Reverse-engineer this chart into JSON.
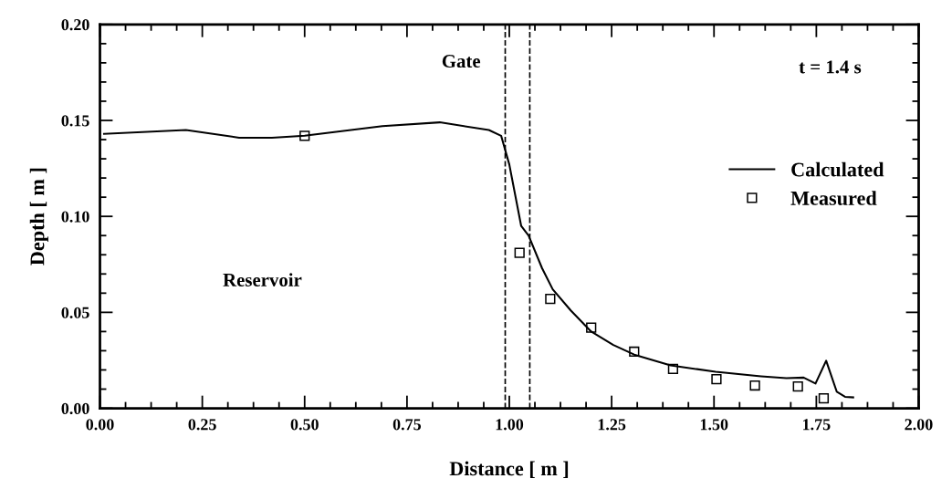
{
  "chart_data": {
    "type": "line",
    "xlabel": "Distance [ m ]",
    "ylabel": "Depth [ m ]",
    "xlim": [
      0,
      2
    ],
    "ylim": [
      0,
      0.2
    ],
    "xticks": [
      {
        "value": 0,
        "label": "0.00"
      },
      {
        "value": 0.25,
        "label": "0.25"
      },
      {
        "value": 0.5,
        "label": "0.50"
      },
      {
        "value": 0.75,
        "label": "0.75"
      },
      {
        "value": 1,
        "label": "1.00"
      },
      {
        "value": 1.25,
        "label": "1.25"
      },
      {
        "value": 1.5,
        "label": "1.50"
      },
      {
        "value": 1.75,
        "label": "1.75"
      },
      {
        "value": 2,
        "label": "2.00"
      }
    ],
    "yticks": [
      {
        "value": 0,
        "label": "0.00"
      },
      {
        "value": 0.05,
        "label": "0.05"
      },
      {
        "value": 0.1,
        "label": "0.10"
      },
      {
        "value": 0.15,
        "label": "0.15"
      },
      {
        "value": 0.2,
        "label": "0.20"
      }
    ],
    "grid": false,
    "legend": "right",
    "series": [
      {
        "name": "Calculated",
        "color": "#000000",
        "marker": "none",
        "line_style": "solid",
        "x": [
          0.01,
          0.21,
          0.34,
          0.42,
          0.5,
          0.69,
          0.83,
          0.95,
          0.98,
          1.0,
          1.029,
          1.047,
          1.08,
          1.106,
          1.15,
          1.2,
          1.254,
          1.305,
          1.394,
          1.504,
          1.615,
          1.677,
          1.719,
          1.748,
          1.774,
          1.8,
          1.82,
          1.84
        ],
        "values": [
          0.143,
          0.145,
          0.141,
          0.141,
          0.142,
          0.147,
          0.149,
          0.145,
          0.142,
          0.127,
          0.095,
          0.09,
          0.073,
          0.062,
          0.051,
          0.04,
          0.033,
          0.028,
          0.0224,
          0.019,
          0.0167,
          0.0157,
          0.016,
          0.0129,
          0.0248,
          0.0086,
          0.006,
          0.0057
        ]
      },
      {
        "name": "Measured",
        "type": "scatter",
        "color": "#000000",
        "marker": "square",
        "x": [
          0.5,
          1.025,
          1.1,
          1.2,
          1.305,
          1.4,
          1.506,
          1.6,
          1.705,
          1.768
        ],
        "values": [
          0.142,
          0.081,
          0.057,
          0.042,
          0.0295,
          0.0205,
          0.0152,
          0.0119,
          0.0114,
          0.0052
        ]
      }
    ],
    "ref_lines": [
      {
        "axis": "x",
        "value": 0.99,
        "label": "Gate",
        "color": "#000000",
        "line_style": "dashed"
      },
      {
        "axis": "x",
        "value": 1.05,
        "color": "#000000",
        "line_style": "dashed"
      }
    ],
    "annotations": [
      "t = 1.4 s",
      "Reservoir"
    ]
  }
}
